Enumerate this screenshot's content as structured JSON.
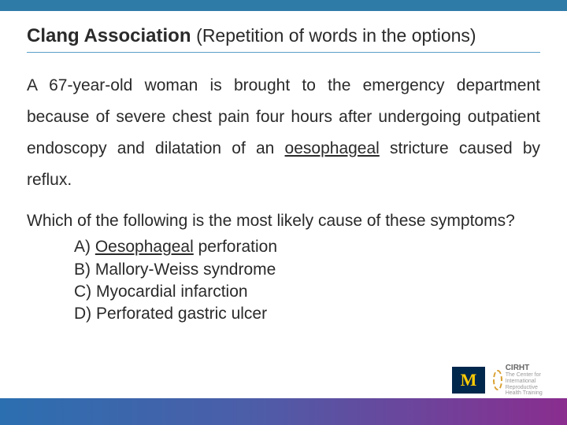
{
  "colors": {
    "top_bar": "#2f7ba8",
    "title_underline": "#5aa0c8",
    "text": "#2a2a2a",
    "gradient_start": "#2b6fb0",
    "gradient_end": "#8a2d8f",
    "logo_m_bg": "#00274c",
    "logo_m_fg": "#ffcb05",
    "logo_c_accent": "#d9a030"
  },
  "title": {
    "bold": "Clang Association",
    "sub": "(Repetition of words in the options)"
  },
  "scenario": {
    "line1_pre": "A 67-year-old woman is brought to the emergency department because of severe chest pain four hours after undergoing outpatient endoscopy and dilatation of an ",
    "underlined": "oesophageal",
    "line1_post": " stricture caused by reflux."
  },
  "question": "Which of the following is the most likely cause of these symptoms?",
  "options": {
    "a_prefix": "A) ",
    "a_under": "Oesophageal",
    "a_rest": " perforation",
    "b": "B) Mallory-Weiss syndrome",
    "c": "C) Myocardial infarction",
    "d": "D) Perforated gastric ulcer"
  },
  "logos": {
    "m": "M",
    "c_title": "CIRHT",
    "c_sub": "The Center for International Reproductive Health Training"
  }
}
